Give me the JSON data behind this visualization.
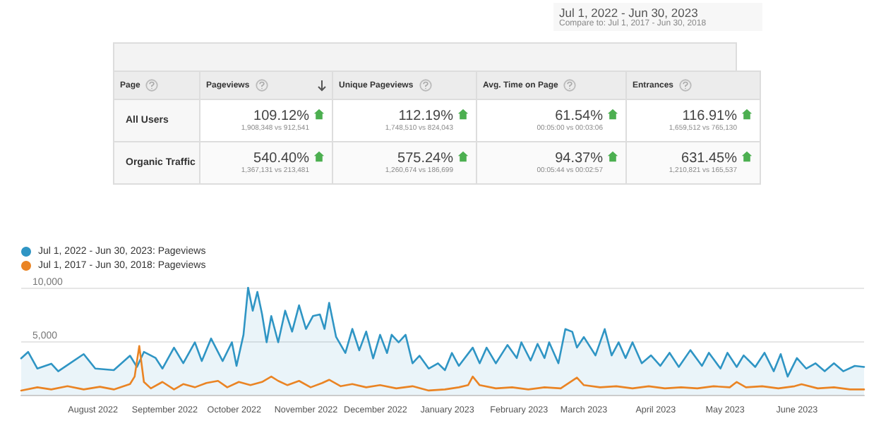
{
  "chart_data": [
    {
      "type": "other",
      "title": "Jul 1, 2022 - Jun 30, 2023",
      "subtitle": "Compare to: Jul 1, 2017 - Jun 30, 2018",
      "categories": [
        "Page",
        "Pageviews",
        "Unique Pageviews",
        "Avg. Time on Page",
        "Entrances"
      ],
      "y_categories": [
        "All Users",
        "Organic Traffic"
      ],
      "cell_labels": [
        [
          "109.12%\n1,908,348 vs 912,541",
          "112.19%\n1,748,510 vs 824,043",
          "61.54%\n00:05:00 vs 00:03:06",
          "116.91%\n1,659,512 vs 765,130"
        ],
        [
          "540.40%\n1,367,131 vs 213,481",
          "575.24%\n1,260,674 vs 186,699",
          "94.37%\n00:05:44 vs 00:02:57",
          "631.45%\n1,210,821 vs 165,537"
        ]
      ]
    },
    {
      "type": "line",
      "legend": "top left",
      "grid": "y",
      "marker": "none",
      "line_style": "solid",
      "xlim": [
        "2022-07-01",
        "2023-06-30"
      ],
      "xticks": [
        {
          "value": "2022-08-01",
          "label": "August 2022"
        },
        {
          "value": "2022-09-01",
          "label": "September 2022"
        },
        {
          "value": "2022-10-01",
          "label": "October 2022"
        },
        {
          "value": "2022-11-01",
          "label": "November 2022"
        },
        {
          "value": "2022-12-01",
          "label": "December 2022"
        },
        {
          "value": "2023-01-01",
          "label": "January 2023"
        },
        {
          "value": "2023-02-01",
          "label": "February 2023"
        },
        {
          "value": "2023-03-01",
          "label": "March 2023"
        },
        {
          "value": "2023-04-01",
          "label": "April 2023"
        },
        {
          "value": "2023-05-01",
          "label": "May 2023"
        },
        {
          "value": "2023-06-01",
          "label": "June 2023"
        }
      ],
      "ylim": [
        0,
        10000
      ],
      "yticks": [
        {
          "value": 0,
          "label": null
        },
        {
          "value": 5000,
          "label": "5,000"
        },
        {
          "value": 10000,
          "label": "10,000"
        }
      ],
      "series": [
        {
          "name": "Jul 1, 2022 - Jun 30, 2023: Pageviews",
          "type": "area",
          "color": "#2f95c4",
          "x": [
            "2022-07-01",
            "2022-07-04",
            "2022-07-08",
            "2022-07-14",
            "2022-07-17",
            "2022-07-28",
            "2022-08-02",
            "2022-08-10",
            "2022-08-17",
            "2022-08-20",
            "2022-08-23",
            "2022-08-28",
            "2022-08-31",
            "2022-09-05",
            "2022-09-09",
            "2022-09-14",
            "2022-09-17",
            "2022-09-21",
            "2022-09-26",
            "2022-09-30",
            "2022-10-02",
            "2022-10-05",
            "2022-10-07",
            "2022-10-09",
            "2022-10-11",
            "2022-10-13",
            "2022-10-15",
            "2022-10-17",
            "2022-10-20",
            "2022-10-23",
            "2022-10-26",
            "2022-10-29",
            "2022-11-01",
            "2022-11-04",
            "2022-11-07",
            "2022-11-09",
            "2022-11-11",
            "2022-11-14",
            "2022-11-18",
            "2022-11-21",
            "2022-11-24",
            "2022-11-27",
            "2022-11-30",
            "2022-12-03",
            "2022-12-06",
            "2022-12-08",
            "2022-12-11",
            "2022-12-14",
            "2022-12-17",
            "2022-12-20",
            "2022-12-24",
            "2022-12-28",
            "2022-12-31",
            "2023-01-03",
            "2023-01-06",
            "2023-01-12",
            "2023-01-15",
            "2023-01-18",
            "2023-01-22",
            "2023-01-27",
            "2023-01-31",
            "2023-02-02",
            "2023-02-06",
            "2023-02-09",
            "2023-02-12",
            "2023-02-14",
            "2023-02-18",
            "2023-02-21",
            "2023-02-24",
            "2023-02-26",
            "2023-03-01",
            "2023-03-06",
            "2023-03-10",
            "2023-03-13",
            "2023-03-16",
            "2023-03-19",
            "2023-03-22",
            "2023-03-26",
            "2023-03-30",
            "2023-04-03",
            "2023-04-07",
            "2023-04-11",
            "2023-04-16",
            "2023-04-21",
            "2023-04-24",
            "2023-04-29",
            "2023-05-02",
            "2023-05-06",
            "2023-05-09",
            "2023-05-14",
            "2023-05-18",
            "2023-05-22",
            "2023-05-25",
            "2023-05-28",
            "2023-06-01",
            "2023-06-05",
            "2023-06-09",
            "2023-06-13",
            "2023-06-17",
            "2023-06-21",
            "2023-06-26",
            "2023-06-30"
          ],
          "values": [
            3400,
            4000,
            2450,
            2900,
            2200,
            3800,
            2450,
            2300,
            3650,
            2600,
            4000,
            3450,
            2450,
            4400,
            2950,
            4900,
            3150,
            5250,
            3150,
            4900,
            2700,
            5600,
            10000,
            7850,
            9600,
            7550,
            4900,
            7350,
            4900,
            7850,
            5900,
            8350,
            6150,
            7350,
            7500,
            6150,
            8580,
            5400,
            3900,
            6150,
            4150,
            5900,
            3400,
            5600,
            3900,
            5600,
            4900,
            5600,
            2940,
            3650,
            2450,
            2940,
            2300,
            3900,
            2700,
            4400,
            2940,
            4400,
            2940,
            4650,
            3430,
            4900,
            3200,
            4750,
            3430,
            4900,
            2940,
            6130,
            5880,
            4410,
            5390,
            3680,
            6130,
            3680,
            4900,
            3430,
            4900,
            2940,
            3680,
            2700,
            3920,
            2600,
            4170,
            2700,
            3920,
            2450,
            3920,
            2600,
            3680,
            2600,
            3920,
            2200,
            3800,
            1700,
            3430,
            2450,
            2940,
            2200,
            2940,
            2200,
            2700,
            2600
          ]
        },
        {
          "name": "Jul 1, 2017 - Jun 30, 2018: Pageviews",
          "type": "line",
          "color": "#ea8424",
          "x": [
            "2022-07-01",
            "2022-07-08",
            "2022-07-14",
            "2022-07-21",
            "2022-07-28",
            "2022-08-04",
            "2022-08-10",
            "2022-08-17",
            "2022-08-19",
            "2022-08-21",
            "2022-08-23",
            "2022-08-26",
            "2022-08-31",
            "2022-09-05",
            "2022-09-09",
            "2022-09-14",
            "2022-09-19",
            "2022-09-24",
            "2022-09-28",
            "2022-10-03",
            "2022-10-08",
            "2022-10-13",
            "2022-10-17",
            "2022-10-20",
            "2022-10-24",
            "2022-10-29",
            "2022-11-03",
            "2022-11-08",
            "2022-11-11",
            "2022-11-16",
            "2022-11-21",
            "2022-11-27",
            "2022-12-03",
            "2022-12-10",
            "2022-12-17",
            "2022-12-24",
            "2022-12-31",
            "2023-01-06",
            "2023-01-10",
            "2023-01-12",
            "2023-01-15",
            "2023-01-22",
            "2023-01-29",
            "2023-02-05",
            "2023-02-12",
            "2023-02-19",
            "2023-02-26",
            "2023-03-01",
            "2023-03-08",
            "2023-03-15",
            "2023-03-22",
            "2023-03-29",
            "2023-04-05",
            "2023-04-12",
            "2023-04-19",
            "2023-04-26",
            "2023-05-03",
            "2023-05-06",
            "2023-05-10",
            "2023-05-17",
            "2023-05-24",
            "2023-05-31",
            "2023-06-03",
            "2023-06-10",
            "2023-06-17",
            "2023-06-24",
            "2023-06-30"
          ],
          "values": [
            400,
            700,
            500,
            800,
            500,
            750,
            500,
            1000,
            1700,
            4560,
            1200,
            600,
            1200,
            500,
            1000,
            700,
            1100,
            1300,
            700,
            1200,
            900,
            1200,
            1700,
            1300,
            900,
            1300,
            700,
            1100,
            1400,
            800,
            1000,
            700,
            900,
            600,
            800,
            400,
            500,
            700,
            900,
            1700,
            900,
            600,
            700,
            500,
            700,
            600,
            1600,
            900,
            700,
            800,
            600,
            800,
            600,
            700,
            600,
            800,
            700,
            1200,
            700,
            800,
            600,
            800,
            980,
            600,
            700,
            500,
            500
          ]
        }
      ]
    }
  ]
}
